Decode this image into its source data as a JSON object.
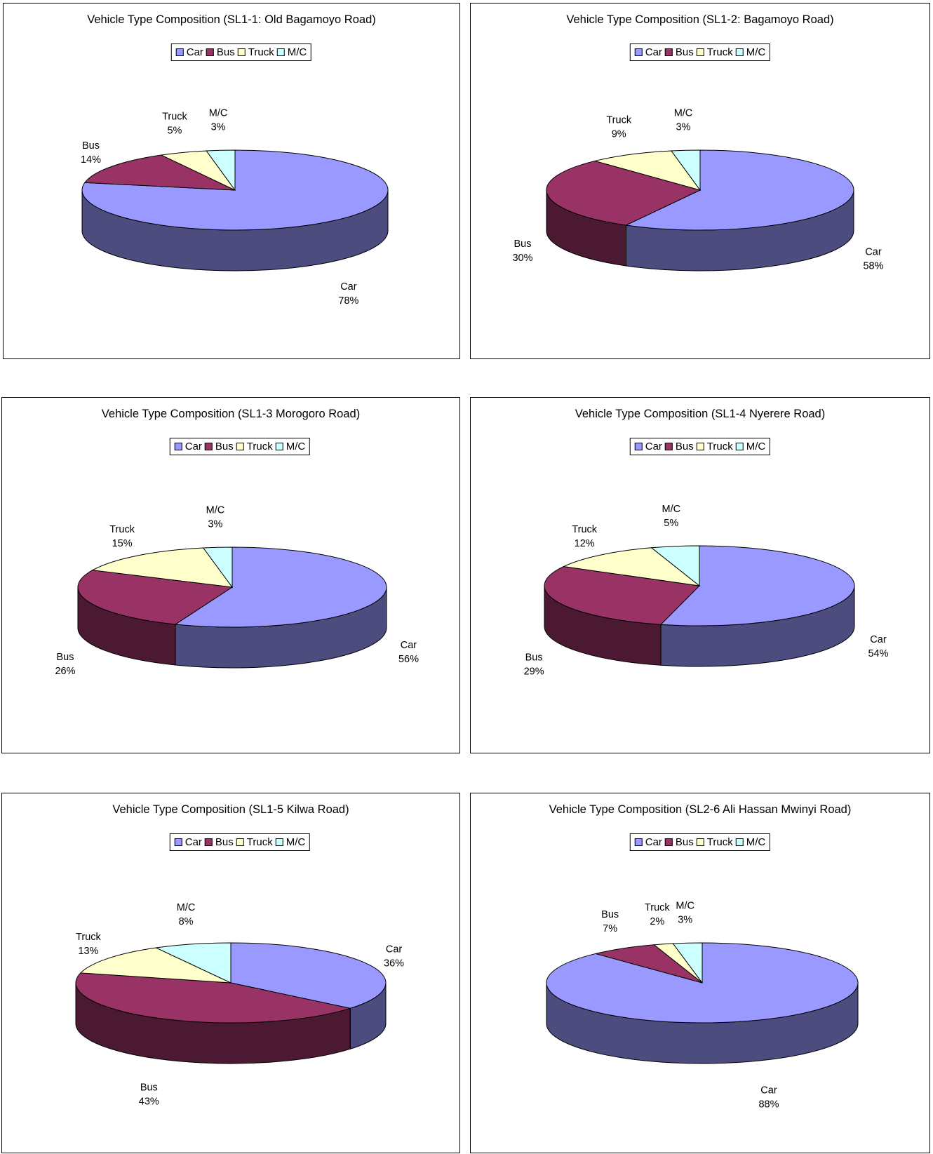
{
  "colors": {
    "Car": {
      "top": "#9999ff",
      "side": "#4c4c7f"
    },
    "Bus": {
      "top": "#993366",
      "side": "#4c1933"
    },
    "Truck": {
      "top": "#ffffcc",
      "side": "#7f7f66"
    },
    "M/C": {
      "top": "#ccffff",
      "side": "#667f7f"
    }
  },
  "legend": [
    "Car",
    "Bus",
    "Truck",
    "M/C"
  ],
  "chart_data": [
    {
      "type": "pie",
      "title": "Vehicle Type Composition (SL1-1: Old Bagamoyo Road)",
      "labels": [
        "Car",
        "Bus",
        "Truck",
        "M/C"
      ],
      "values": [
        78,
        14,
        5,
        3
      ],
      "value_labels": [
        "78%",
        "14%",
        "5%",
        "3%"
      ],
      "legend_position": "top",
      "style": "3d"
    },
    {
      "type": "pie",
      "title": "Vehicle Type Composition (SL1-2: Bagamoyo Road)",
      "labels": [
        "Car",
        "Bus",
        "Truck",
        "M/C"
      ],
      "values": [
        58,
        30,
        9,
        3
      ],
      "value_labels": [
        "58%",
        "30%",
        "9%",
        "3%"
      ],
      "legend_position": "top",
      "style": "3d"
    },
    {
      "type": "pie",
      "title": "Vehicle Type Composition (SL1-3 Morogoro Road)",
      "labels": [
        "Car",
        "Bus",
        "Truck",
        "M/C"
      ],
      "values": [
        56,
        26,
        15,
        3
      ],
      "value_labels": [
        "56%",
        "26%",
        "15%",
        "3%"
      ],
      "legend_position": "top",
      "style": "3d"
    },
    {
      "type": "pie",
      "title": "Vehicle Type Composition (SL1-4 Nyerere Road)",
      "labels": [
        "Car",
        "Bus",
        "Truck",
        "M/C"
      ],
      "values": [
        54,
        29,
        12,
        5
      ],
      "value_labels": [
        "54%",
        "29%",
        "12%",
        "5%"
      ],
      "legend_position": "top",
      "style": "3d"
    },
    {
      "type": "pie",
      "title": "Vehicle Type Composition (SL1-5 Kilwa Road)",
      "labels": [
        "Car",
        "Bus",
        "Truck",
        "M/C"
      ],
      "values": [
        36,
        43,
        13,
        8
      ],
      "value_labels": [
        "36%",
        "43%",
        "13%",
        "8%"
      ],
      "legend_position": "top",
      "style": "3d"
    },
    {
      "type": "pie",
      "title": "Vehicle Type Composition (SL2-6 Ali Hassan Mwinyi Road)",
      "labels": [
        "Car",
        "Bus",
        "Truck",
        "M/C"
      ],
      "values": [
        88,
        7,
        2,
        3
      ],
      "value_labels": [
        "88%",
        "7%",
        "2%",
        "3%"
      ],
      "legend_position": "top",
      "style": "3d"
    }
  ]
}
